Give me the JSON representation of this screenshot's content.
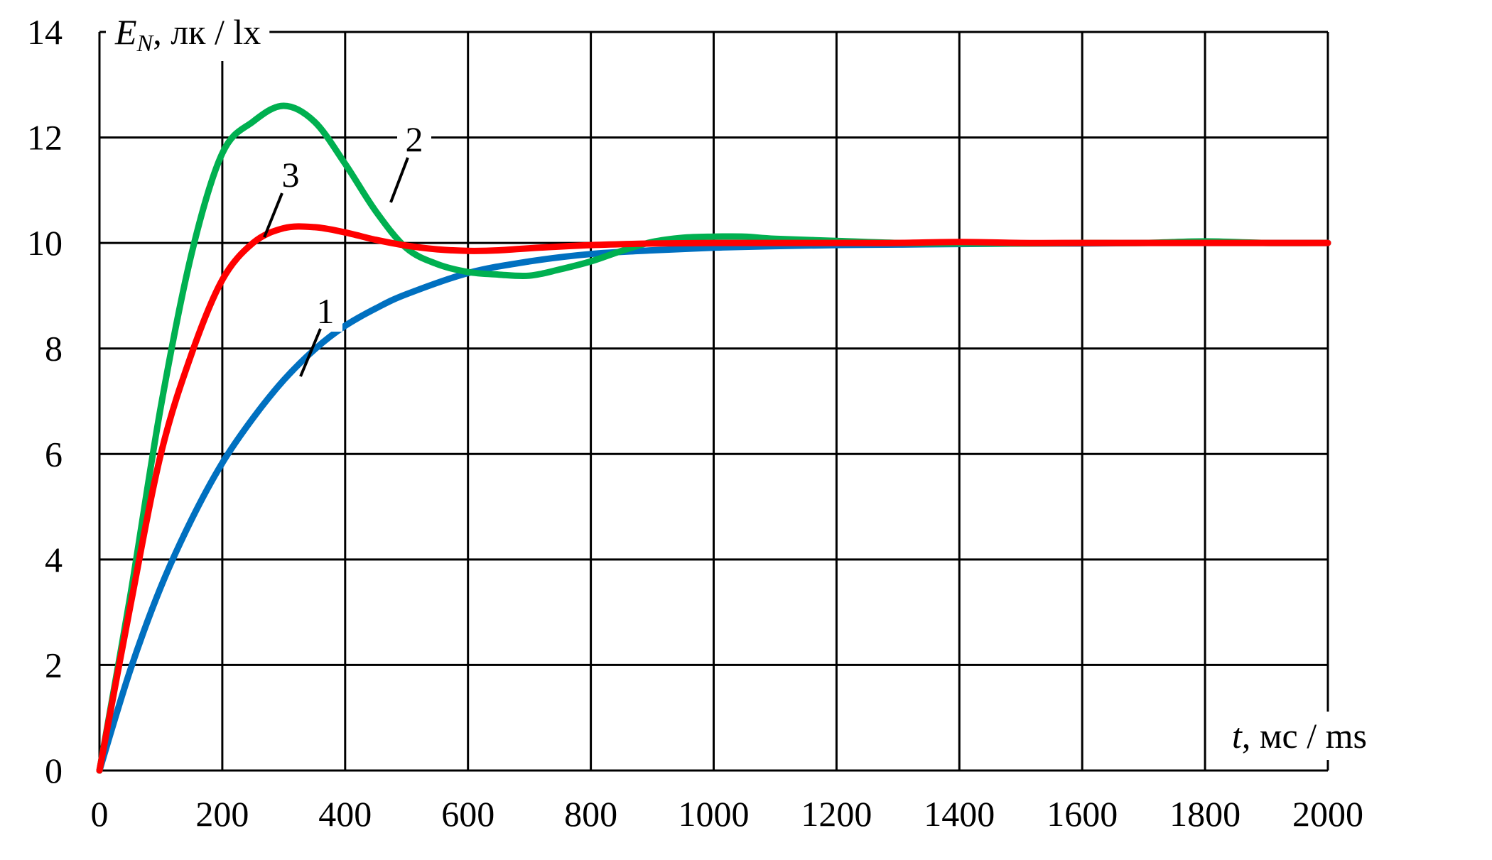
{
  "chart_data": {
    "type": "line",
    "title": "",
    "xlabel": {
      "symbol": "t",
      "units": ", мс / ms"
    },
    "ylabel": {
      "symbol": "E",
      "subscript": "N",
      "units": ", лк / lx"
    },
    "xlim": [
      0,
      2000
    ],
    "ylim": [
      0,
      14
    ],
    "x_ticks": [
      0,
      200,
      400,
      600,
      800,
      1000,
      1200,
      1400,
      1600,
      1800,
      2000
    ],
    "y_ticks": [
      0,
      2,
      4,
      6,
      8,
      10,
      12,
      14
    ],
    "grid": true,
    "series": [
      {
        "label": "1",
        "color": "#0070C0",
        "x": [
          0,
          50,
          100,
          150,
          200,
          250,
          300,
          350,
          400,
          450,
          500,
          600,
          700,
          800,
          900,
          1000,
          1100,
          1200,
          1300,
          1400,
          1500,
          1600,
          1700,
          1800,
          1900,
          2000
        ],
        "y": [
          0,
          1.9,
          3.48,
          4.76,
          5.83,
          6.68,
          7.4,
          7.98,
          8.43,
          8.76,
          9.03,
          9.43,
          9.65,
          9.79,
          9.86,
          9.91,
          9.94,
          9.96,
          9.97,
          9.98,
          9.99,
          9.99,
          10.0,
          10.0,
          10.0,
          10.0
        ]
      },
      {
        "label": "2",
        "color": "#00B050",
        "x": [
          0,
          50,
          100,
          150,
          200,
          250,
          300,
          350,
          400,
          450,
          500,
          550,
          600,
          650,
          700,
          750,
          800,
          850,
          900,
          950,
          1000,
          1050,
          1100,
          1200,
          1300,
          1400,
          1500,
          1600,
          1700,
          1800,
          1900,
          2000
        ],
        "y": [
          0,
          3.3,
          6.9,
          9.8,
          11.7,
          12.3,
          12.6,
          12.3,
          11.5,
          10.6,
          9.9,
          9.6,
          9.45,
          9.4,
          9.38,
          9.5,
          9.65,
          9.85,
          10.02,
          10.1,
          10.12,
          10.12,
          10.08,
          10.04,
          10.0,
          9.99,
          9.99,
          10.0,
          10.0,
          10.03,
          10.0,
          10.0
        ]
      },
      {
        "label": "3",
        "color": "#FF0000",
        "x": [
          0,
          50,
          100,
          150,
          200,
          250,
          300,
          350,
          400,
          450,
          500,
          550,
          600,
          650,
          700,
          800,
          900,
          1000,
          1100,
          1200,
          1300,
          1400,
          1500,
          1600,
          1700,
          1800,
          1900,
          2000
        ],
        "y": [
          0,
          3.1,
          6.0,
          7.9,
          9.3,
          10.0,
          10.28,
          10.3,
          10.2,
          10.06,
          9.95,
          9.88,
          9.85,
          9.86,
          9.9,
          9.96,
          9.99,
          10.0,
          10.0,
          10.0,
          10.0,
          10.02,
          10.0,
          10.0,
          10.0,
          10.0,
          10.0,
          10.0
        ]
      }
    ]
  }
}
